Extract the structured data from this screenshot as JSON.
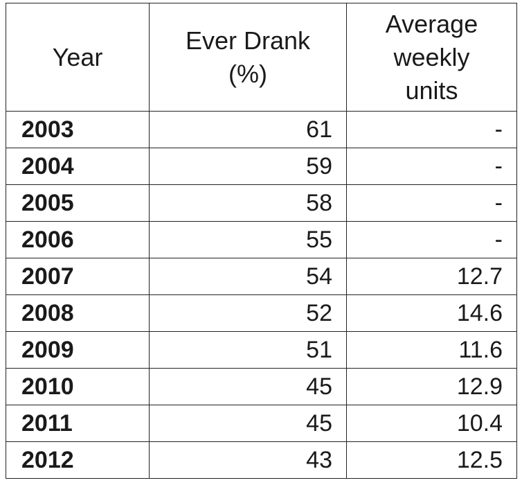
{
  "chart_data": {
    "type": "table",
    "columns": [
      "Year",
      "Ever Drank\n(%)",
      "Average\nweekly\nunits"
    ],
    "rows": [
      [
        "2003",
        "61",
        "-"
      ],
      [
        "2004",
        "59",
        "-"
      ],
      [
        "2005",
        "58",
        "-"
      ],
      [
        "2006",
        "55",
        "-"
      ],
      [
        "2007",
        "54",
        "12.7"
      ],
      [
        "2008",
        "52",
        "14.6"
      ],
      [
        "2009",
        "51",
        "11.6"
      ],
      [
        "2010",
        "45",
        "12.9"
      ],
      [
        "2011",
        "45",
        "10.4"
      ],
      [
        "2012",
        "43",
        "12.5"
      ]
    ]
  }
}
